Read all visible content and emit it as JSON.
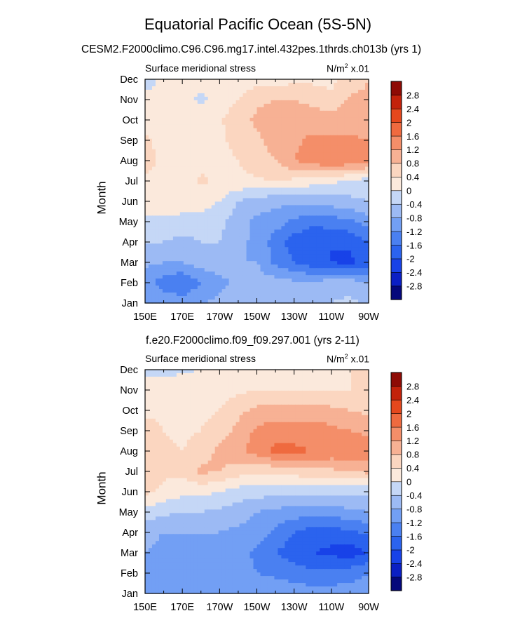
{
  "figure": {
    "title": "Equatorial Pacific Ocean (5S-5N)"
  },
  "colorbar": {
    "levels": [
      -2.8,
      -2.4,
      -2,
      -1.6,
      -1.2,
      -0.8,
      -0.4,
      0,
      0.4,
      0.8,
      1.2,
      1.6,
      2,
      2.4,
      2.8
    ],
    "labels": [
      "-2.8",
      "-2.4",
      "-2",
      "-1.6",
      "-1.2",
      "-0.8",
      "-0.4",
      "0",
      "0.4",
      "0.8",
      "1.2",
      "1.6",
      "2",
      "2.4",
      "2.8"
    ],
    "colors": [
      "#05087b",
      "#0b1fc4",
      "#1842e8",
      "#2b63ee",
      "#4a80f1",
      "#729ff4",
      "#9cbaf4",
      "#c5d7f6",
      "#fbe9dc",
      "#fbd6c0",
      "#f7b194",
      "#f48e69",
      "#ef6a3f",
      "#e5481d",
      "#c3220b",
      "#8e0b05"
    ]
  },
  "chart_data": [
    {
      "type": "heatmap",
      "title": "CESM2.F2000climo.C96.C96.mg17.intel.432pes.1thrds.ch013b (yrs 1)",
      "subtitle_left": "Surface meridional stress",
      "subtitle_right_main": "N/m",
      "subtitle_right_sup": "2",
      "subtitle_right_tail": " x.01",
      "ylabel": "Month",
      "xlabel": "",
      "x_ticks": [
        "150E",
        "170E",
        "170W",
        "150W",
        "130W",
        "110W",
        "90W"
      ],
      "x_values": [
        150,
        170,
        190,
        210,
        230,
        250,
        270
      ],
      "y_ticks": [
        "Jan",
        "Feb",
        "Mar",
        "Apr",
        "May",
        "Jun",
        "Jul",
        "Aug",
        "Sep",
        "Oct",
        "Nov",
        "Dec"
      ],
      "xlim": [
        150,
        270
      ],
      "units": "N/m2 x.01",
      "z": [
        [
          -0.9,
          -0.9,
          -1.0,
          -0.8,
          -0.7,
          -0.6,
          -0.5,
          -0.5,
          -0.6,
          -0.6,
          -0.4,
          -0.3,
          -0.5
        ],
        [
          -1.0,
          -1.4,
          -1.6,
          -1.2,
          -0.9,
          -0.7,
          -0.6,
          -0.6,
          -0.7,
          -0.7,
          -0.6,
          -0.6,
          -0.8
        ],
        [
          -0.7,
          -0.8,
          -0.8,
          -0.6,
          -0.6,
          -0.8,
          -0.8,
          -1.3,
          -1.6,
          -1.9,
          -2.0,
          -2.1,
          -1.8
        ],
        [
          -0.4,
          -0.4,
          -0.5,
          -0.4,
          -0.4,
          -0.7,
          -0.9,
          -1.4,
          -1.8,
          -1.9,
          -2.0,
          -1.9,
          -1.6
        ],
        [
          -0.1,
          -0.1,
          -0.2,
          -0.2,
          -0.3,
          -0.6,
          -0.9,
          -1.0,
          -1.3,
          -1.5,
          -1.4,
          -1.3,
          -1.0
        ],
        [
          0.2,
          0.25,
          0.3,
          0.2,
          0.0,
          -0.4,
          -0.6,
          -0.7,
          -0.7,
          -0.7,
          -0.6,
          -0.5,
          -0.4
        ],
        [
          0.35,
          0.3,
          0.3,
          0.45,
          0.35,
          0.3,
          0.35,
          0.4,
          0.3,
          0.2,
          0.1,
          -0.1,
          -0.2
        ],
        [
          0.5,
          0.35,
          0.3,
          0.3,
          0.3,
          0.4,
          0.6,
          0.8,
          1.2,
          1.4,
          1.6,
          1.5,
          1.4
        ],
        [
          0.45,
          0.3,
          0.3,
          0.3,
          0.35,
          0.5,
          0.7,
          1.0,
          1.1,
          1.3,
          1.3,
          1.3,
          1.2
        ],
        [
          0.25,
          0.25,
          0.3,
          0.35,
          0.35,
          0.6,
          0.9,
          1.0,
          1.0,
          1.0,
          1.0,
          1.0,
          0.9
        ],
        [
          0.1,
          0.25,
          0.2,
          -0.1,
          0.2,
          0.4,
          0.7,
          0.8,
          0.8,
          0.7,
          0.5,
          0.9,
          0.9
        ],
        [
          -0.2,
          0.1,
          0.1,
          0.15,
          0.15,
          0.15,
          0.2,
          0.2,
          0.3,
          0.3,
          0.3,
          0.5,
          0.8
        ]
      ]
    },
    {
      "type": "heatmap",
      "title": "f.e20.F2000climo.f09_f09.297.001 (yrs 2-11)",
      "subtitle_left": "Surface meridional stress",
      "subtitle_right_main": "N/m",
      "subtitle_right_sup": "2",
      "subtitle_right_tail": " x.01",
      "ylabel": "Month",
      "xlabel": "",
      "x_ticks": [
        "150E",
        "170E",
        "170W",
        "150W",
        "130W",
        "110W",
        "90W"
      ],
      "x_values": [
        150,
        170,
        190,
        210,
        230,
        250,
        270
      ],
      "y_ticks": [
        "Jan",
        "Feb",
        "Mar",
        "Apr",
        "May",
        "Jun",
        "Jul",
        "Aug",
        "Sep",
        "Oct",
        "Nov",
        "Dec"
      ],
      "xlim": [
        150,
        270
      ],
      "units": "N/m2 x.01",
      "z": [
        [
          -0.9,
          -0.9,
          -0.9,
          -0.9,
          -0.9,
          -0.9,
          -0.9,
          -0.9,
          -1.0,
          -1.0,
          -1.0,
          -1.0,
          -0.9
        ],
        [
          -0.9,
          -1.0,
          -1.0,
          -1.0,
          -1.0,
          -1.0,
          -1.2,
          -1.3,
          -1.4,
          -1.5,
          -1.5,
          -1.4,
          -1.2
        ],
        [
          -0.8,
          -0.9,
          -0.9,
          -0.9,
          -0.9,
          -1.0,
          -1.3,
          -1.6,
          -1.8,
          -2.0,
          -2.1,
          -2.2,
          -2.0
        ],
        [
          -0.7,
          -0.8,
          -0.8,
          -0.8,
          -0.8,
          -0.9,
          -1.0,
          -1.3,
          -1.6,
          -1.8,
          -1.8,
          -1.7,
          -1.5
        ],
        [
          -0.2,
          -0.3,
          -0.4,
          -0.4,
          -0.5,
          -0.6,
          -0.8,
          -0.9,
          -1.0,
          -1.0,
          -1.0,
          -0.9,
          -0.8
        ],
        [
          0.5,
          0.3,
          0.1,
          0.1,
          0.0,
          -0.2,
          -0.2,
          -0.3,
          -0.3,
          -0.3,
          -0.3,
          -0.3,
          -0.3
        ],
        [
          0.8,
          0.5,
          0.5,
          0.9,
          0.8,
          0.6,
          0.5,
          0.5,
          0.6,
          0.7,
          0.7,
          0.8,
          0.9
        ],
        [
          0.7,
          0.5,
          0.4,
          0.6,
          0.9,
          1.1,
          1.4,
          1.7,
          1.7,
          1.6,
          1.5,
          1.5,
          1.5
        ],
        [
          0.5,
          0.4,
          0.3,
          0.4,
          0.6,
          0.9,
          1.3,
          1.4,
          1.4,
          1.4,
          1.3,
          1.2,
          1.1
        ],
        [
          0.35,
          0.35,
          0.3,
          0.3,
          0.4,
          0.7,
          0.9,
          1.0,
          1.0,
          1.0,
          0.9,
          0.8,
          0.7
        ],
        [
          0.2,
          0.2,
          0.2,
          0.2,
          0.2,
          0.3,
          0.4,
          0.4,
          0.4,
          0.4,
          0.4,
          0.4,
          0.4
        ],
        [
          -0.1,
          -0.1,
          -0.05,
          0.0,
          0.1,
          0.2,
          0.2,
          0.2,
          0.2,
          0.3,
          0.3,
          0.4,
          0.5
        ]
      ]
    }
  ]
}
